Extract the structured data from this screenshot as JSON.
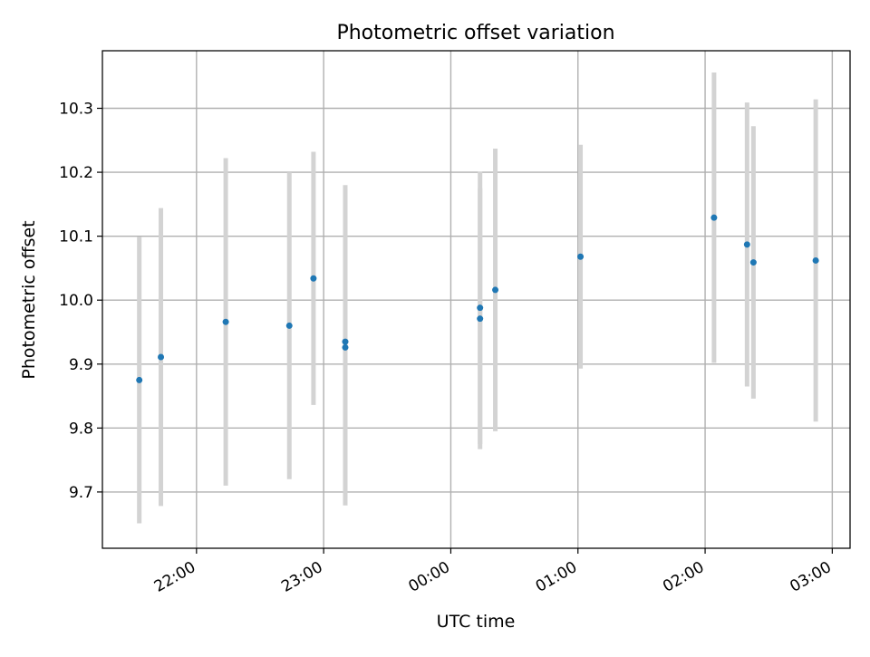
{
  "chart_data": {
    "type": "scatter",
    "title": "Photometric offset variation",
    "xlabel": "UTC time",
    "ylabel": "Photometric offset",
    "x_tick_labels": [
      "22:00",
      "23:00",
      "00:00",
      "01:00",
      "02:00",
      "03:00"
    ],
    "y_tick_labels": [
      "9.7",
      "9.8",
      "9.9",
      "10.0",
      "10.1",
      "10.2",
      "10.3"
    ],
    "x_ticks_hours": [
      22,
      23,
      24,
      25,
      26,
      27
    ],
    "y_ticks": [
      9.7,
      9.8,
      9.9,
      10.0,
      10.1,
      10.2,
      10.3
    ],
    "xlim_hours": [
      21.26,
      27.14
    ],
    "ylim": [
      9.612,
      10.39
    ],
    "grid": true,
    "x_axis_note": "x values are UTC clock times expressed as hours, continuing past midnight (24 = 00:00, 25 = 01:00, ...)",
    "points": [
      {
        "x": 21.55,
        "y": 9.875,
        "err": 0.224
      },
      {
        "x": 21.72,
        "y": 9.911,
        "err": 0.233
      },
      {
        "x": 22.23,
        "y": 9.966,
        "err": 0.256
      },
      {
        "x": 22.73,
        "y": 9.96,
        "err": 0.24
      },
      {
        "x": 22.92,
        "y": 10.034,
        "err": 0.198
      },
      {
        "x": 23.17,
        "y": 9.935,
        "err": 0.245
      },
      {
        "x": 23.17,
        "y": 9.926,
        "err": 0.247
      },
      {
        "x": 24.23,
        "y": 9.988,
        "err": 0.213
      },
      {
        "x": 24.23,
        "y": 9.971,
        "err": 0.204
      },
      {
        "x": 24.35,
        "y": 10.016,
        "err": 0.221
      },
      {
        "x": 25.02,
        "y": 10.068,
        "err": 0.175
      },
      {
        "x": 26.07,
        "y": 10.129,
        "err": 0.227
      },
      {
        "x": 26.33,
        "y": 10.087,
        "err": 0.222
      },
      {
        "x": 26.38,
        "y": 10.059,
        "err": 0.213
      },
      {
        "x": 26.87,
        "y": 10.062,
        "err": 0.252
      }
    ],
    "colors": {
      "marker": "#1f77b4",
      "errorbar": "#d3d3d3",
      "grid": "#b0b0b0",
      "axes": "#000000"
    }
  }
}
